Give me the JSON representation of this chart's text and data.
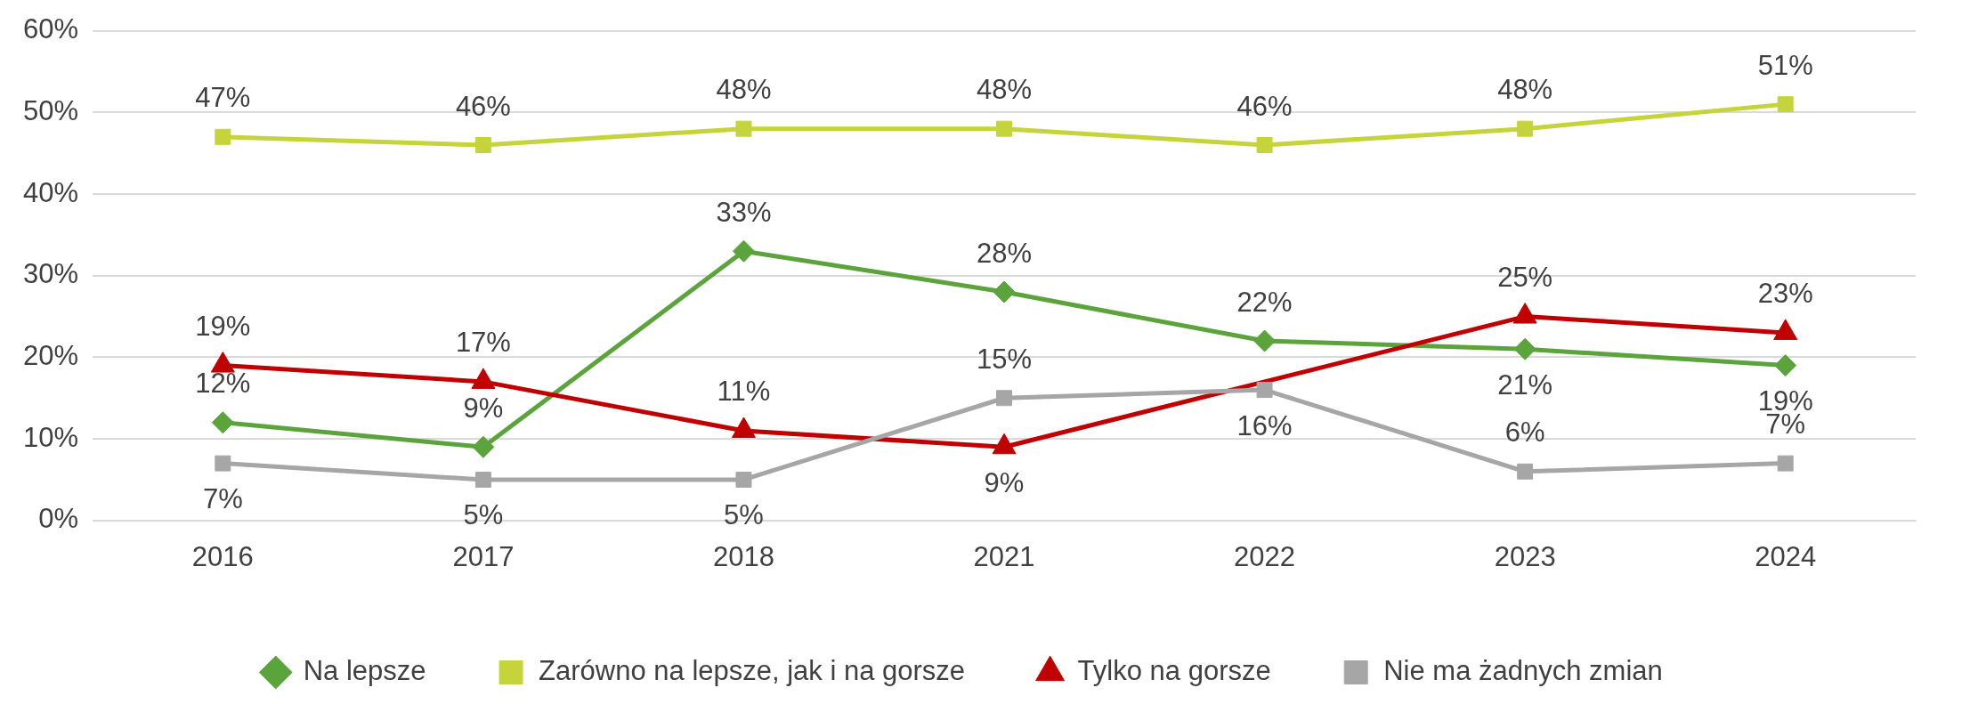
{
  "chart_data": {
    "type": "line",
    "categories": [
      "2016",
      "2017",
      "2018",
      "2021",
      "2022",
      "2023",
      "2024"
    ],
    "series": [
      {
        "name": "Na lepsze",
        "color": "#5ba33b",
        "marker": "diamond",
        "values": [
          12,
          9,
          33,
          28,
          22,
          21,
          19
        ],
        "value_labels": [
          "12%",
          "9%",
          "33%",
          "28%",
          "22%",
          "21%",
          "19%"
        ]
      },
      {
        "name": "Zarówno na lepsze, jak i na gorsze",
        "color": "#c5d43b",
        "marker": "square",
        "values": [
          47,
          46,
          48,
          48,
          46,
          48,
          51
        ],
        "value_labels": [
          "47%",
          "46%",
          "48%",
          "48%",
          "46%",
          "48%",
          "51%"
        ]
      },
      {
        "name": "Tylko na gorsze",
        "color": "#c00000",
        "marker": "triangle",
        "values": [
          19,
          17,
          11,
          9,
          null,
          25,
          23
        ],
        "value_labels": [
          "19%",
          "17%",
          "11%",
          "9%",
          null,
          "25%",
          "23%"
        ]
      },
      {
        "name": "Nie ma żadnych zmian",
        "color": "#a6a6a6",
        "marker": "square",
        "values": [
          7,
          5,
          5,
          15,
          16,
          6,
          7
        ],
        "value_labels": [
          "7%",
          "5%",
          "5%",
          "15%",
          "16%",
          "6%",
          "7%"
        ]
      }
    ],
    "ylim": [
      0,
      60
    ],
    "yticks": [
      {
        "value": 0,
        "label": "0%"
      },
      {
        "value": 10,
        "label": "10%"
      },
      {
        "value": 20,
        "label": "20%"
      },
      {
        "value": 30,
        "label": "30%"
      },
      {
        "value": 40,
        "label": "40%"
      },
      {
        "value": 50,
        "label": "50%"
      },
      {
        "value": 60,
        "label": "60%"
      }
    ],
    "grid": "y",
    "legend": "bottom",
    "line_style": "solid"
  }
}
